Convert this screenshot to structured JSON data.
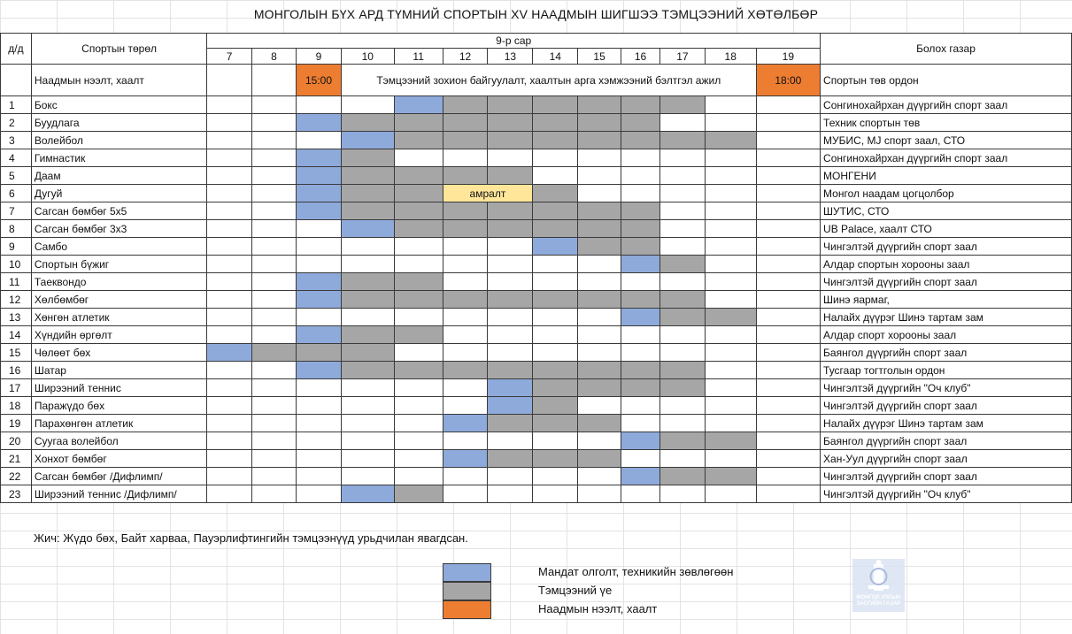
{
  "title": "МОНГОЛЫН БҮХ АРД ТҮМНИЙ СПОРТЫН XV  НААДМЫН ШИГШЭЭ ТЭМЦЭЭНИЙ ХӨТӨЛБӨР",
  "header": {
    "dd": "д/д",
    "sport_type": "Спортын төрөл",
    "month": "9-р сар",
    "days": [
      "7",
      "8",
      "9",
      "10",
      "11",
      "12",
      "13",
      "14",
      "15",
      "16",
      "17",
      "18",
      "19"
    ],
    "venue": "Болох газар"
  },
  "opening": {
    "label": "Наадмын нээлт, хаалт",
    "start_time": "15:00",
    "note": "Тэмцээний зохион байгуулалт, хаалтын арга хэмжээний бэлтгэл ажил",
    "end_time": "18:00",
    "venue": "Спортын төв ордон"
  },
  "rows": [
    {
      "no": "1",
      "sport": "Бокс",
      "cells": [
        "",
        "",
        "",
        "",
        "B",
        "G",
        "G",
        "G",
        "G",
        "G",
        "G",
        "",
        ""
      ],
      "venue": "Сонгинохайрхан дүүргийн спорт заал"
    },
    {
      "no": "2",
      "sport": "Буудлага",
      "cells": [
        "",
        "",
        "B",
        "G",
        "G",
        "G",
        "G",
        "G",
        "G",
        "G",
        "",
        "",
        ""
      ],
      "venue": "Техник спортын төв"
    },
    {
      "no": "3",
      "sport": "Волейбол",
      "cells": [
        "",
        "",
        "",
        "B",
        "G",
        "G",
        "G",
        "G",
        "G",
        "G",
        "G",
        "G",
        ""
      ],
      "venue": "МУБИС, MJ спорт заал, СТО"
    },
    {
      "no": "4",
      "sport": "Гимнастик",
      "cells": [
        "",
        "",
        "B",
        "G",
        "",
        "",
        "",
        "",
        "",
        "",
        "",
        "",
        ""
      ],
      "venue": "Сонгинохайрхан дүүргийн спорт заал"
    },
    {
      "no": "5",
      "sport": "Даам",
      "cells": [
        "",
        "",
        "B",
        "G",
        "G",
        "G",
        "G",
        "",
        "",
        "",
        "",
        "",
        ""
      ],
      "venue": "МОНГЕНИ"
    },
    {
      "no": "6",
      "sport": "Дугуй",
      "cells": [
        "",
        "",
        "B",
        "G",
        "G",
        "Y",
        "Y",
        "G",
        "",
        "",
        "",
        "",
        ""
      ],
      "venue": "Монгол наадам цогцолбор"
    },
    {
      "no": "7",
      "sport": "Сагсан бөмбөг 5х5",
      "cells": [
        "",
        "",
        "B",
        "G",
        "G",
        "G",
        "G",
        "G",
        "G",
        "G",
        "",
        "",
        ""
      ],
      "venue": "ШУТИС, СТО"
    },
    {
      "no": "8",
      "sport": "Сагсан бөмбөг 3х3",
      "cells": [
        "",
        "",
        "",
        "B",
        "G",
        "G",
        "G",
        "G",
        "G",
        "G",
        "",
        "",
        ""
      ],
      "venue": "UB Palace, хаалт СТО"
    },
    {
      "no": "9",
      "sport": "Самбо",
      "cells": [
        "",
        "",
        "",
        "",
        "",
        "",
        "",
        "B",
        "G",
        "G",
        "",
        "",
        ""
      ],
      "venue": "Чингэлтэй дүүргийн спорт заал"
    },
    {
      "no": "10",
      "sport": "Спортын бүжиг",
      "cells": [
        "",
        "",
        "",
        "",
        "",
        "",
        "",
        "",
        "",
        "B",
        "G",
        "",
        ""
      ],
      "venue": "Алдар спортын хорооны заал"
    },
    {
      "no": "11",
      "sport": "Таеквондо",
      "cells": [
        "",
        "",
        "B",
        "G",
        "G",
        "",
        "",
        "",
        "",
        "",
        "",
        "",
        ""
      ],
      "venue": "Чингэлтэй дүүргийн спорт заал"
    },
    {
      "no": "12",
      "sport": "Хөлбөмбөг",
      "cells": [
        "",
        "",
        "B",
        "G",
        "G",
        "G",
        "G",
        "G",
        "G",
        "G",
        "G",
        "",
        ""
      ],
      "venue": "Шинэ яармаг,"
    },
    {
      "no": "13",
      "sport": "Хөнгөн атлетик",
      "cells": [
        "",
        "",
        "",
        "",
        "",
        "",
        "",
        "",
        "",
        "B",
        "G",
        "G",
        ""
      ],
      "venue": "Налайх дүүрэг Шинэ тартам зам"
    },
    {
      "no": "14",
      "sport": "Хүндийн өргөлт",
      "cells": [
        "",
        "",
        "B",
        "G",
        "G",
        "",
        "",
        "",
        "",
        "",
        "",
        "",
        ""
      ],
      "venue": "Алдар спорт хорооны заал"
    },
    {
      "no": "15",
      "sport": "Чөлөөт бөх",
      "cells": [
        "B",
        "G",
        "G",
        "G",
        "",
        "",
        "",
        "",
        "",
        "",
        "",
        "",
        ""
      ],
      "venue": "Баянгол дүүргийн спорт заал"
    },
    {
      "no": "16",
      "sport": "Шатар",
      "cells": [
        "",
        "",
        "B",
        "G",
        "G",
        "G",
        "G",
        "G",
        "G",
        "G",
        "G",
        "",
        ""
      ],
      "venue": "Тусгаар тогтголын ордон"
    },
    {
      "no": "17",
      "sport": "Ширээний теннис",
      "cells": [
        "",
        "",
        "",
        "",
        "",
        "",
        "B",
        "G",
        "G",
        "G",
        "G",
        "",
        ""
      ],
      "venue": "Чингэлтэй дүүргийн \"Оч клуб\""
    },
    {
      "no": "18",
      "sport": "Паражүдо бөх",
      "cells": [
        "",
        "",
        "",
        "",
        "",
        "",
        "B",
        "G",
        "",
        "",
        "",
        "",
        ""
      ],
      "venue": "Чингэлтэй дүүргийн спорт заал"
    },
    {
      "no": "19",
      "sport": "Парахөнгөн атлетик",
      "cells": [
        "",
        "",
        "",
        "",
        "",
        "B",
        "G",
        "G",
        "G",
        "",
        "",
        "",
        ""
      ],
      "venue": "Налайх дүүрэг Шинэ тартам зам"
    },
    {
      "no": "20",
      "sport": "Суугаа волейбол",
      "cells": [
        "",
        "",
        "",
        "",
        "",
        "",
        "",
        "",
        "",
        "B",
        "G",
        "G",
        ""
      ],
      "venue": "Баянгол дүүргийн спорт заал"
    },
    {
      "no": "21",
      "sport": "Хонхот бөмбөг",
      "cells": [
        "",
        "",
        "",
        "",
        "",
        "B",
        "G",
        "G",
        "G",
        "",
        "",
        "",
        ""
      ],
      "venue": "Хан-Уул дүүргийн спорт заал"
    },
    {
      "no": "22",
      "sport": "Сагсан бөмбөг /Дифлимп/",
      "cells": [
        "",
        "",
        "",
        "",
        "",
        "",
        "",
        "",
        "",
        "B",
        "G",
        "G",
        ""
      ],
      "venue": "Чингэлтэй дүүргийн спорт заал"
    },
    {
      "no": "23",
      "sport": "Ширээний теннис /Дифлимп/",
      "cells": [
        "",
        "",
        "",
        "B",
        "G",
        "",
        "",
        "",
        "",
        "",
        "",
        "",
        ""
      ],
      "venue": "Чингэлтэй дүүргийн \"Оч клуб\""
    }
  ],
  "cell_text": {
    "Y": "амралт"
  },
  "note": "Жич: Жүдо бөх, Байт харваа, Пауэрлифтингийн тэмцээнүүд урьдчилан явагдсан.",
  "legend": [
    {
      "color": "#8eaadb",
      "label": "Мандат олголт, техникийн зөвлөгөөн"
    },
    {
      "color": "#a6a6a6",
      "label": "Тэмцээний үе"
    },
    {
      "color": "#ed7d31",
      "label": "Наадмын нээлт, хаалт"
    }
  ],
  "emblem": {
    "icon": "government-emblem-icon",
    "text": "МОНГОЛ УЛСЫН ЗАСГИЙН ГАЗАР"
  },
  "colors": {
    "blue": "#8eaadb",
    "gray": "#a6a6a6",
    "orange": "#ed7d31",
    "yellow": "#ffe699"
  }
}
